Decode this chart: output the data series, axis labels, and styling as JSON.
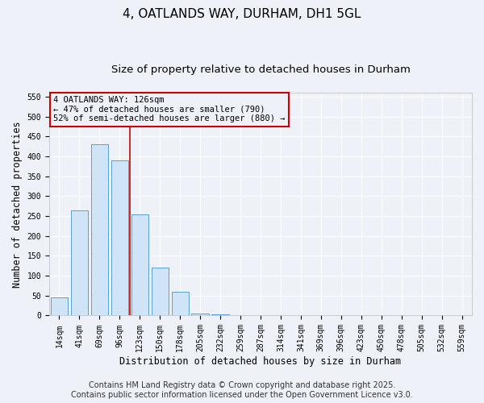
{
  "title": "4, OATLANDS WAY, DURHAM, DH1 5GL",
  "subtitle": "Size of property relative to detached houses in Durham",
  "xlabel": "Distribution of detached houses by size in Durham",
  "ylabel": "Number of detached properties",
  "categories": [
    "14sqm",
    "41sqm",
    "69sqm",
    "96sqm",
    "123sqm",
    "150sqm",
    "178sqm",
    "205sqm",
    "232sqm",
    "259sqm",
    "287sqm",
    "314sqm",
    "341sqm",
    "369sqm",
    "396sqm",
    "423sqm",
    "450sqm",
    "478sqm",
    "505sqm",
    "532sqm",
    "559sqm"
  ],
  "values": [
    45,
    265,
    430,
    390,
    255,
    120,
    60,
    5,
    2,
    1,
    1,
    1,
    0,
    0,
    0,
    0,
    0,
    0,
    0,
    0,
    0
  ],
  "bar_color": "#d0e4f7",
  "bar_edge_color": "#5a9fd4",
  "vline_x": 3.5,
  "vline_color": "#cc0000",
  "annotation_line1": "4 OATLANDS WAY: 126sqm",
  "annotation_line2": "← 47% of detached houses are smaller (790)",
  "annotation_line3": "52% of semi-detached houses are larger (880) →",
  "annotation_box_color": "#cc0000",
  "ylim": [
    0,
    560
  ],
  "yticks": [
    0,
    50,
    100,
    150,
    200,
    250,
    300,
    350,
    400,
    450,
    500,
    550
  ],
  "footer1": "Contains HM Land Registry data © Crown copyright and database right 2025.",
  "footer2": "Contains public sector information licensed under the Open Government Licence v3.0.",
  "bg_color": "#eef2f8",
  "grid_color": "#ffffff",
  "title_fontsize": 11,
  "subtitle_fontsize": 9.5,
  "tick_fontsize": 7,
  "ylabel_fontsize": 8.5,
  "xlabel_fontsize": 8.5,
  "footer_fontsize": 7,
  "annotation_fontsize": 7.5
}
